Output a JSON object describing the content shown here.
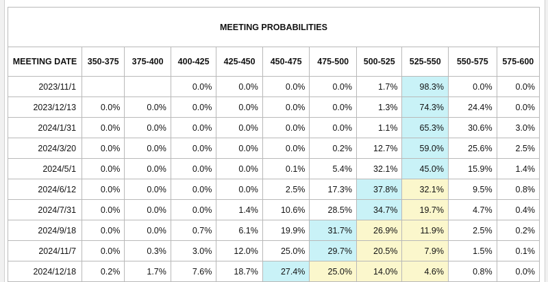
{
  "table": {
    "title": "MEETING PROBABILITIES",
    "date_header": "MEETING DATE",
    "columns": [
      "350-375",
      "375-400",
      "400-425",
      "425-450",
      "450-475",
      "475-500",
      "500-525",
      "525-550",
      "550-575",
      "575-600"
    ],
    "highlight_colors": {
      "blue": "#c9f2f7",
      "yellow": "#fbf7cc"
    },
    "rows": [
      {
        "date": "2023/11/1",
        "values": [
          "",
          "",
          "0.0%",
          "0.0%",
          "0.0%",
          "0.0%",
          "1.7%",
          "98.3%",
          "0.0%",
          "0.0%"
        ],
        "highlight": [
          "",
          "",
          "",
          "",
          "",
          "",
          "",
          "blue",
          "",
          ""
        ]
      },
      {
        "date": "2023/12/13",
        "values": [
          "0.0%",
          "0.0%",
          "0.0%",
          "0.0%",
          "0.0%",
          "0.0%",
          "1.3%",
          "74.3%",
          "24.4%",
          "0.0%"
        ],
        "highlight": [
          "",
          "",
          "",
          "",
          "",
          "",
          "",
          "blue",
          "",
          ""
        ]
      },
      {
        "date": "2024/1/31",
        "values": [
          "0.0%",
          "0.0%",
          "0.0%",
          "0.0%",
          "0.0%",
          "0.0%",
          "1.1%",
          "65.3%",
          "30.6%",
          "3.0%"
        ],
        "highlight": [
          "",
          "",
          "",
          "",
          "",
          "",
          "",
          "blue",
          "",
          ""
        ]
      },
      {
        "date": "2024/3/20",
        "values": [
          "0.0%",
          "0.0%",
          "0.0%",
          "0.0%",
          "0.0%",
          "0.2%",
          "12.7%",
          "59.0%",
          "25.6%",
          "2.5%"
        ],
        "highlight": [
          "",
          "",
          "",
          "",
          "",
          "",
          "",
          "blue",
          "",
          ""
        ]
      },
      {
        "date": "2024/5/1",
        "values": [
          "0.0%",
          "0.0%",
          "0.0%",
          "0.0%",
          "0.1%",
          "5.4%",
          "32.1%",
          "45.0%",
          "15.9%",
          "1.4%"
        ],
        "highlight": [
          "",
          "",
          "",
          "",
          "",
          "",
          "",
          "blue",
          "",
          ""
        ]
      },
      {
        "date": "2024/6/12",
        "values": [
          "0.0%",
          "0.0%",
          "0.0%",
          "0.0%",
          "2.5%",
          "17.3%",
          "37.8%",
          "32.1%",
          "9.5%",
          "0.8%"
        ],
        "highlight": [
          "",
          "",
          "",
          "",
          "",
          "",
          "blue",
          "yellow",
          "",
          ""
        ]
      },
      {
        "date": "2024/7/31",
        "values": [
          "0.0%",
          "0.0%",
          "0.0%",
          "1.4%",
          "10.6%",
          "28.5%",
          "34.7%",
          "19.7%",
          "4.7%",
          "0.4%"
        ],
        "highlight": [
          "",
          "",
          "",
          "",
          "",
          "",
          "blue",
          "yellow",
          "",
          ""
        ]
      },
      {
        "date": "2024/9/18",
        "values": [
          "0.0%",
          "0.0%",
          "0.7%",
          "6.1%",
          "19.9%",
          "31.7%",
          "26.9%",
          "11.9%",
          "2.5%",
          "0.2%"
        ],
        "highlight": [
          "",
          "",
          "",
          "",
          "",
          "blue",
          "yellow",
          "yellow",
          "",
          ""
        ]
      },
      {
        "date": "2024/11/7",
        "values": [
          "0.0%",
          "0.3%",
          "3.0%",
          "12.0%",
          "25.0%",
          "29.7%",
          "20.5%",
          "7.9%",
          "1.5%",
          "0.1%"
        ],
        "highlight": [
          "",
          "",
          "",
          "",
          "",
          "blue",
          "yellow",
          "yellow",
          "",
          ""
        ]
      },
      {
        "date": "2024/12/18",
        "values": [
          "0.2%",
          "1.7%",
          "7.6%",
          "18.7%",
          "27.4%",
          "25.0%",
          "14.0%",
          "4.6%",
          "0.8%",
          "0.0%"
        ],
        "highlight": [
          "",
          "",
          "",
          "",
          "blue",
          "yellow",
          "yellow",
          "yellow",
          "",
          ""
        ]
      }
    ]
  }
}
